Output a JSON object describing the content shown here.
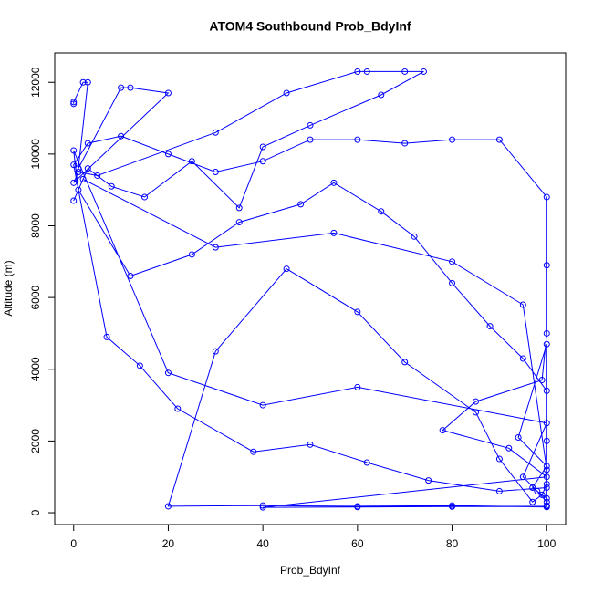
{
  "chart_data": {
    "type": "line",
    "marker": "open-circle",
    "color": "#0000ff",
    "title": "ATOM4 Southbound Prob_BdyInf",
    "x_label": "Prob_BdyInf",
    "y_label": "Altitude (m)",
    "xlim": [
      -4,
      104
    ],
    "ylim": [
      -330,
      12820
    ],
    "xticks": [
      0,
      20,
      40,
      60,
      80,
      100
    ],
    "yticks": [
      0,
      2000,
      4000,
      6000,
      8000,
      10000,
      12000
    ],
    "series": [
      {
        "name": "Prob_BdyInf",
        "x": [
          0,
          0,
          2,
          3,
          1,
          10,
          12,
          20,
          0,
          1,
          5,
          30,
          45,
          60,
          62,
          70,
          74,
          65,
          50,
          40,
          35,
          25,
          15,
          8,
          3,
          0,
          2,
          30,
          55,
          80,
          95,
          100,
          100,
          99,
          97,
          90,
          85,
          70,
          60,
          45,
          30,
          20,
          40,
          60,
          80,
          100,
          100,
          98,
          95,
          100,
          60,
          40,
          20,
          0,
          1,
          12,
          25,
          35,
          48,
          55,
          65,
          72,
          80,
          88,
          95,
          100,
          100,
          100,
          90,
          75,
          62,
          50,
          38,
          22,
          14,
          7,
          0,
          3,
          10,
          20,
          30,
          40,
          50,
          60,
          70,
          80,
          90,
          100,
          100,
          100,
          99,
          85,
          78,
          92,
          100,
          40,
          60,
          80,
          100,
          100,
          97,
          100,
          94,
          100,
          100
        ],
        "values": [
          11400,
          11450,
          12000,
          12000,
          9600,
          11850,
          11850,
          11700,
          9200,
          9500,
          9400,
          10600,
          11700,
          12300,
          12300,
          12300,
          12300,
          11650,
          10800,
          10200,
          8500,
          9800,
          8800,
          9100,
          9600,
          8700,
          9300,
          7400,
          7800,
          7000,
          5800,
          1200,
          800,
          500,
          300,
          1500,
          2800,
          4200,
          5600,
          6800,
          4500,
          180,
          200,
          180,
          200,
          160,
          300,
          600,
          1000,
          2500,
          3500,
          3000,
          3900,
          10100,
          9000,
          6600,
          7200,
          8100,
          8600,
          9200,
          8400,
          7700,
          6400,
          5200,
          4300,
          3400,
          2000,
          700,
          600,
          900,
          1400,
          1900,
          1700,
          2900,
          4100,
          4900,
          9700,
          10300,
          10500,
          10000,
          9500,
          9800,
          10400,
          10400,
          10300,
          10400,
          10400,
          8800,
          6900,
          5000,
          3700,
          3100,
          2300,
          1800,
          1000,
          150,
          160,
          170,
          180,
          400,
          700,
          1300,
          2100,
          4700,
          200
        ]
      }
    ]
  }
}
